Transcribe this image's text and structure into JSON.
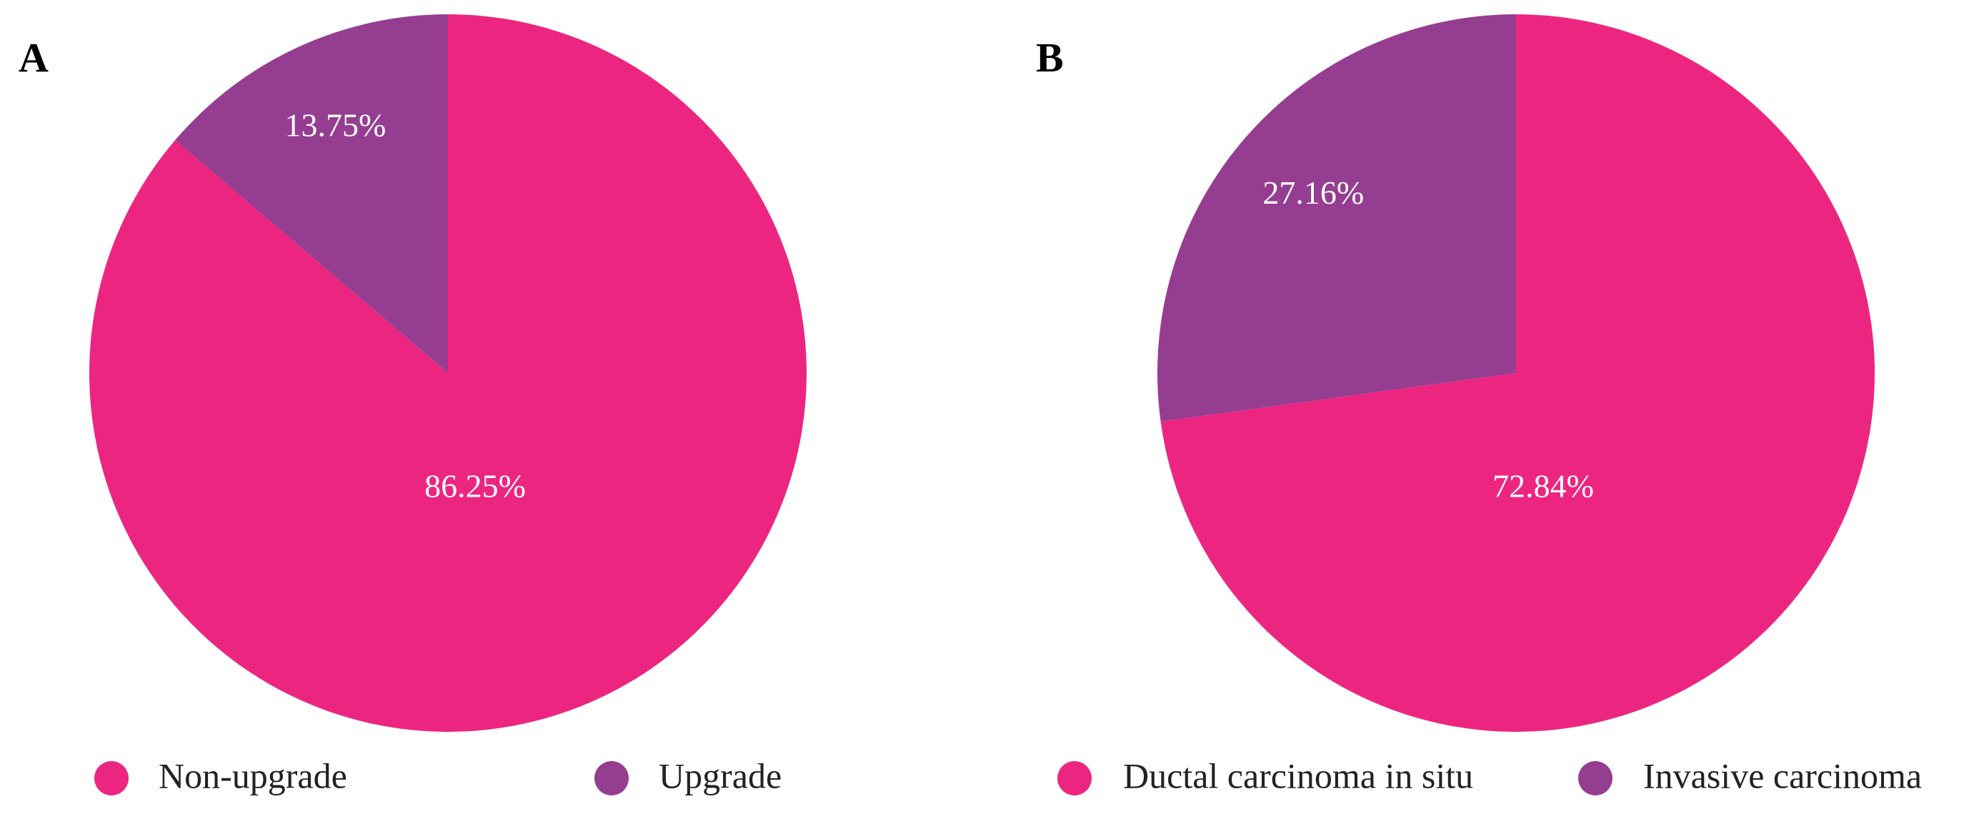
{
  "panels": {
    "a_letter": "A",
    "b_letter": "B"
  },
  "colors": {
    "pink": "#EC2680",
    "purple": "#953D91",
    "background": "#ffffff"
  },
  "chart_data": [
    {
      "type": "pie",
      "panel": "A",
      "title": "",
      "start_angle": "12 o'clock",
      "direction": "clockwise",
      "slices": [
        {
          "label": "Non-upgrade",
          "value": 86.25,
          "display": "86.25%",
          "color": "#EC2680"
        },
        {
          "label": "Upgrade",
          "value": 13.75,
          "display": "13.75%",
          "color": "#953D91"
        }
      ],
      "legend": {
        "placement": "bottom",
        "entries": [
          "Non-upgrade",
          "Upgrade"
        ]
      }
    },
    {
      "type": "pie",
      "panel": "B",
      "title": "",
      "start_angle": "12 o'clock",
      "direction": "clockwise",
      "slices": [
        {
          "label": "Ductal carcinoma in situ",
          "value": 72.84,
          "display": "72.84%",
          "color": "#EC2680"
        },
        {
          "label": "Invasive carcinoma",
          "value": 27.16,
          "display": "27.16%",
          "color": "#953D91"
        }
      ],
      "legend": {
        "placement": "bottom",
        "entries": [
          "Ductal carcinoma in situ",
          "Invasive carcinoma"
        ]
      }
    }
  ]
}
